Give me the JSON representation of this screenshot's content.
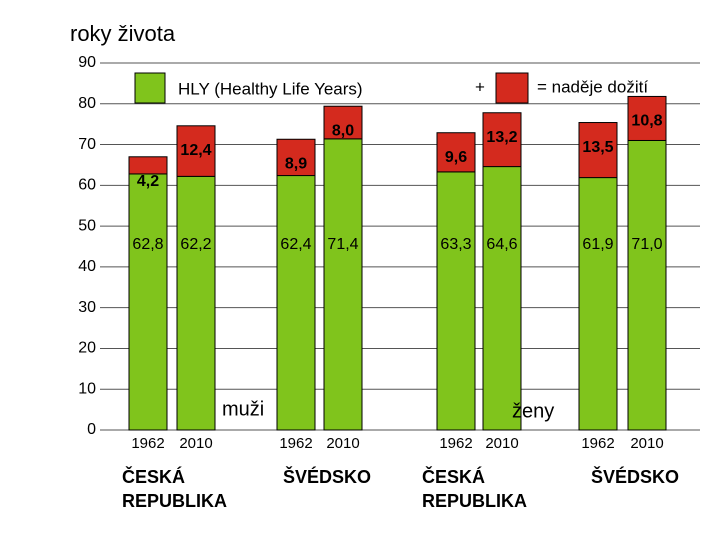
{
  "chart_data": {
    "type": "bar",
    "ylabel": "roky života",
    "categories": [
      "1962",
      "2010",
      "1962",
      "2010",
      "1962",
      "2010",
      "1962",
      "2010"
    ],
    "groups": [
      "ČESKÁ REPUBLIKA",
      "ŠVÉDSKO",
      "ČESKÁ REPUBLIKA",
      "ŠVÉDSKO"
    ],
    "sexes": [
      "muži",
      "ženy"
    ],
    "stacked": true,
    "series": [
      {
        "name": "HLY (Healthy Life Years)",
        "color": "#80c41c",
        "values": [
          62.8,
          62.2,
          62.4,
          71.4,
          63.3,
          64.6,
          61.9,
          71.0
        ],
        "value_labels": [
          "62,8",
          "62,2",
          "62,4",
          "71,4",
          "63,3",
          "64,6",
          "61,9",
          "71,0"
        ]
      },
      {
        "color": "#d42a1e",
        "values": [
          4.2,
          12.4,
          8.9,
          8.0,
          9.6,
          13.2,
          13.5,
          10.8
        ],
        "value_labels": [
          "4,2",
          "12,4",
          "8,9",
          "8,0",
          "9,6",
          "13,2",
          "13,5",
          "10,8"
        ]
      }
    ],
    "legend_plus": "+",
    "legend_total": "= naděje dožití",
    "ylim": [
      0,
      90
    ],
    "yticks": [
      0,
      10,
      20,
      30,
      40,
      50,
      60,
      70,
      80,
      90
    ],
    "grid": true
  }
}
